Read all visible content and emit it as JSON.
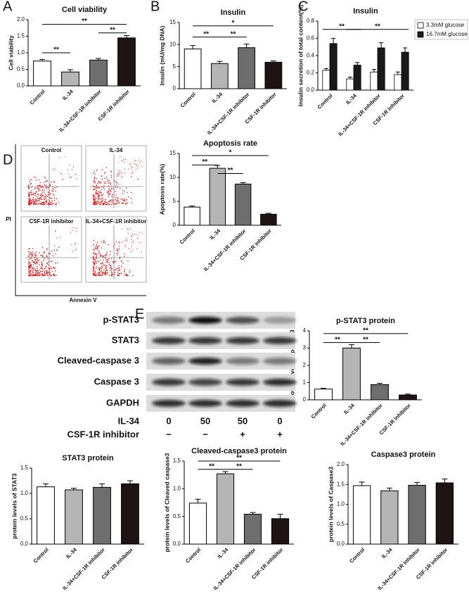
{
  "panel_labels": [
    "A",
    "B",
    "C",
    "D",
    "E"
  ],
  "flow": {
    "plots": [
      "Control",
      "IL-34",
      "CSF-1R inhibitor",
      "IL-34+CSF-1R inhibitor"
    ],
    "y_label": "PI",
    "x_label": "Annexin V"
  },
  "blot": {
    "proteins": [
      "p-STAT3",
      "STAT3",
      "Cleaved-caspase 3",
      "Caspase 3",
      "GAPDH"
    ],
    "treatments": [
      {
        "name": "IL-34",
        "doses": [
          "0",
          "50",
          "50",
          "0"
        ]
      },
      {
        "name": "CSF-1R inhibitor",
        "doses": [
          "−",
          "−",
          "+",
          "+"
        ]
      }
    ]
  },
  "chart_data": [
    {
      "type": "bar",
      "title": "Cell viability",
      "y_label": "Cell viability",
      "categories": [
        "Control",
        "IL-34",
        "IL-34+CSF-1R inhibitor",
        "CSF-1R inhibitor"
      ],
      "values": [
        0.75,
        0.42,
        0.78,
        1.45
      ],
      "errors": [
        0.05,
        0.07,
        0.05,
        0.07
      ],
      "colors": [
        "#ffffff",
        "#b5b5b5",
        "#6e6e6e",
        "#1e1414"
      ],
      "ylim": [
        0,
        2
      ],
      "yticks": [
        {
          "value": 0,
          "label": "0.0"
        },
        0.5,
        {
          "value": 1,
          "label": "1.0"
        },
        1.5,
        {
          "value": 2,
          "label": "2.0"
        }
      ],
      "annotations": [
        "**",
        "**",
        "**"
      ]
    },
    {
      "type": "bar",
      "title": "Insulin",
      "y_label": "Insulin (mU/mg DNA)",
      "categories": [
        "Control",
        "IL-34",
        "IL-34+CSF-1R inhibitor",
        "CSF-1R inhibitor"
      ],
      "values": [
        9.0,
        5.7,
        9.3,
        6.0
      ],
      "errors": [
        0.8,
        0.5,
        0.8,
        0.3
      ],
      "colors": [
        "#ffffff",
        "#b5b5b5",
        "#6e6e6e",
        "#1e1414"
      ],
      "ylim": [
        0,
        15
      ],
      "yticks": [
        0,
        5,
        10,
        15
      ],
      "annotations": [
        "*",
        "**",
        "**"
      ]
    },
    {
      "type": "bar",
      "title": "Insulin",
      "y_label": "Insulin secretion of total content(%)",
      "categories": [
        "Control",
        "IL-34",
        "IL-34+CSF-1R inhibitor",
        "CSF-1R inhibitor"
      ],
      "series": [
        {
          "name": "3.3mM glucose",
          "color": "#ffffff",
          "values": [
            0.23,
            0.13,
            0.21,
            0.18
          ],
          "errors": [
            0.02,
            0.02,
            0.03,
            0.03
          ]
        },
        {
          "name": "16.7mM glucose",
          "color": "#1a1a1a",
          "values": [
            0.54,
            0.29,
            0.49,
            0.44
          ],
          "errors": [
            0.06,
            0.03,
            0.06,
            0.05
          ]
        }
      ],
      "ylim": [
        0,
        0.8
      ],
      "yticks": [
        {
          "value": 0,
          "label": "0.0"
        },
        0.2,
        0.4,
        0.6,
        0.8
      ],
      "annotations": [
        "**",
        "**"
      ]
    },
    {
      "type": "bar",
      "title": "Apoptosis rate",
      "y_label": "Apoptosis rate(%)",
      "categories": [
        "Control",
        "IL-34",
        "IL-34+CSF-1R inhibitor",
        "CSF-1R inhibitor"
      ],
      "values": [
        3.8,
        11.9,
        8.6,
        2.3
      ],
      "errors": [
        0.2,
        0.6,
        0.3,
        0.2
      ],
      "colors": [
        "#ffffff",
        "#b5b5b5",
        "#6e6e6e",
        "#1e1414"
      ],
      "ylim": [
        0,
        15
      ],
      "yticks": [
        0,
        5,
        10,
        15
      ],
      "annotations": [
        "**",
        "*",
        "**"
      ]
    },
    {
      "type": "bar",
      "title": "p-STAT3 protein",
      "y_label": "protein levels of p-STAT3",
      "categories": [
        "Control",
        "IL-34",
        "IL-34+CSF-1R inhibitor",
        "CSF-1R inhibitor"
      ],
      "values": [
        0.62,
        3.0,
        0.88,
        0.28
      ],
      "errors": [
        0.05,
        0.2,
        0.08,
        0.05
      ],
      "colors": [
        "#ffffff",
        "#b5b5b5",
        "#6e6e6e",
        "#1e1414"
      ],
      "ylim": [
        0,
        4
      ],
      "yticks": [
        0,
        1,
        2,
        3,
        4
      ],
      "annotations": [
        "**",
        "**",
        "**"
      ]
    },
    {
      "type": "bar",
      "title": "STAT3 protein",
      "y_label": "protein levels of STAT3",
      "categories": [
        "Control",
        "IL-34",
        "IL-34+CSF-1R inhibitor",
        "CSF-1R inhibitor"
      ],
      "values": [
        1.13,
        1.07,
        1.12,
        1.19
      ],
      "errors": [
        0.06,
        0.03,
        0.07,
        0.06
      ],
      "colors": [
        "#ffffff",
        "#b5b5b5",
        "#6e6e6e",
        "#1e1414"
      ],
      "ylim": [
        0,
        1.5
      ],
      "yticks": [
        {
          "value": 0,
          "label": "0.0"
        },
        0.5,
        {
          "value": 1,
          "label": "1.0"
        },
        1.5
      ],
      "annotations": []
    },
    {
      "type": "bar",
      "title": "Cleaved-caspase3 protein",
      "y_label": "protein levels of Cleaved caspase3",
      "categories": [
        "Control",
        "IL-34",
        "IL-34+CSF-1R inhibitor",
        "CSF-1R inhibitor"
      ],
      "values": [
        0.74,
        1.27,
        0.54,
        0.46
      ],
      "errors": [
        0.07,
        0.04,
        0.03,
        0.08
      ],
      "colors": [
        "#ffffff",
        "#b5b5b5",
        "#6e6e6e",
        "#1e1414"
      ],
      "ylim": [
        0,
        1.5
      ],
      "yticks": [
        {
          "value": 0,
          "label": "0.0"
        },
        0.5,
        {
          "value": 1,
          "label": "1.0"
        },
        1.5
      ],
      "annotations": [
        "**",
        "**",
        "**"
      ]
    },
    {
      "type": "bar",
      "title": "Caspase3 protein",
      "y_label": "protein levels of Caspase3",
      "categories": [
        "Control",
        "IL-34",
        "IL-34+CSF-1R inhibitor",
        "CSF-1R inhibitor"
      ],
      "values": [
        1.47,
        1.34,
        1.48,
        1.54
      ],
      "errors": [
        0.09,
        0.07,
        0.07,
        0.1
      ],
      "colors": [
        "#ffffff",
        "#b5b5b5",
        "#6e6e6e",
        "#1e1414"
      ],
      "ylim": [
        0,
        2
      ],
      "yticks": [
        {
          "value": 0,
          "label": "0.0"
        },
        0.5,
        {
          "value": 1,
          "label": "1.0"
        },
        1.5,
        {
          "value": 2,
          "label": "2.0"
        }
      ],
      "annotations": []
    }
  ]
}
